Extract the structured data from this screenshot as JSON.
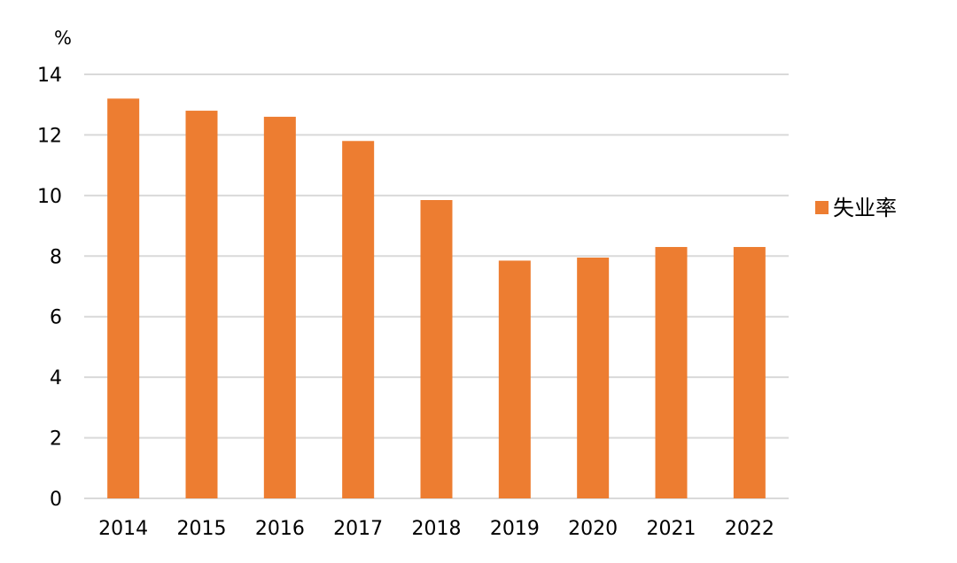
{
  "chart_data": {
    "type": "bar",
    "ylabel": "%",
    "ylim": [
      0,
      14
    ],
    "yticks": [
      0,
      2,
      4,
      6,
      8,
      10,
      12,
      14
    ],
    "categories": [
      "2014",
      "2015",
      "2016",
      "2017",
      "2018",
      "2019",
      "2020",
      "2021",
      "2022"
    ],
    "series": [
      {
        "name": "失业率",
        "values": [
          13.2,
          12.8,
          12.6,
          11.8,
          9.85,
          7.85,
          7.95,
          8.3,
          8.3
        ]
      }
    ],
    "grid": true,
    "legend_position": "right",
    "colors": {
      "bar": "#ED7D31",
      "grid": "#D9D9D9",
      "text": "#000000"
    }
  }
}
